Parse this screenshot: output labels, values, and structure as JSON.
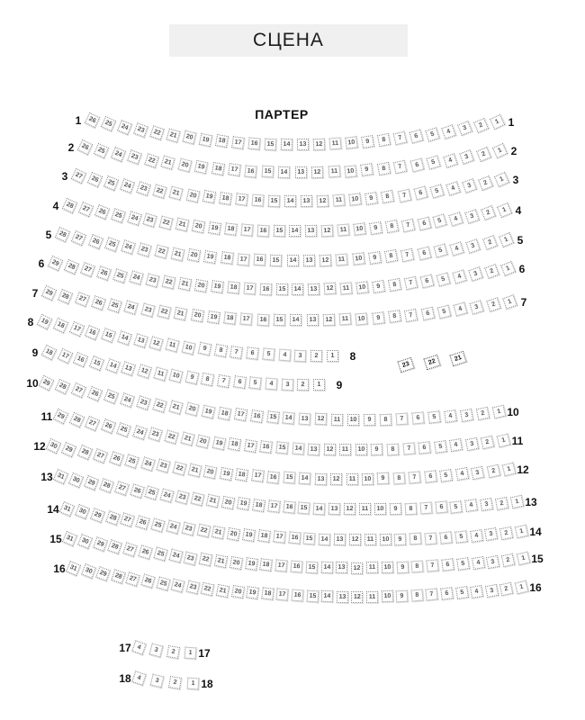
{
  "stage": {
    "label": "СЦЕНА"
  },
  "section": {
    "label": "ПАРТЕР"
  },
  "rows": [
    {
      "row": "1",
      "left_label": "1",
      "right_label": "1",
      "seat_start": 26,
      "seat_end": 1
    },
    {
      "row": "2",
      "left_label": "2",
      "right_label": "2",
      "seat_start": 26,
      "seat_end": 1
    },
    {
      "row": "3",
      "left_label": "3",
      "right_label": "3",
      "seat_start": 27,
      "seat_end": 1
    },
    {
      "row": "4",
      "left_label": "4",
      "right_label": "4",
      "seat_start": 28,
      "seat_end": 1
    },
    {
      "row": "5",
      "left_label": "5",
      "right_label": "5",
      "seat_start": 28,
      "seat_end": 1
    },
    {
      "row": "6",
      "left_label": "6",
      "right_label": "6",
      "seat_start": 29,
      "seat_end": 1
    },
    {
      "row": "7",
      "left_label": "7",
      "right_label": "7",
      "seat_start": 29,
      "seat_end": 1
    },
    {
      "row": "8",
      "left_label": "8",
      "right_label": "8",
      "seat_start": 19,
      "seat_end": 1
    },
    {
      "row": "9",
      "left_label": "9",
      "right_label": "9",
      "seat_start": 18,
      "seat_end": 1
    },
    {
      "row": "10",
      "left_label": "10",
      "right_label": "10",
      "seat_start": 29,
      "seat_end": 1
    },
    {
      "row": "11",
      "left_label": "11",
      "right_label": "11",
      "seat_start": 29,
      "seat_end": 1
    },
    {
      "row": "12",
      "left_label": "12",
      "right_label": "12",
      "seat_start": 30,
      "seat_end": 1
    },
    {
      "row": "13",
      "left_label": "13",
      "right_label": "13",
      "seat_start": 31,
      "seat_end": 1
    },
    {
      "row": "14",
      "left_label": "14",
      "right_label": "14",
      "seat_start": 31,
      "seat_end": 1
    },
    {
      "row": "15",
      "left_label": "15",
      "right_label": "15",
      "seat_start": 31,
      "seat_end": 1
    },
    {
      "row": "16",
      "left_label": "16",
      "right_label": "16",
      "seat_start": 31,
      "seat_end": 1
    },
    {
      "row": "17",
      "left_label": "17",
      "right_label": "17",
      "seat_start": 4,
      "seat_end": 1
    },
    {
      "row": "18",
      "left_label": "18",
      "right_label": "18",
      "seat_start": 4,
      "seat_end": 1
    }
  ],
  "side_block": {
    "seats": [
      "23",
      "22",
      "21"
    ]
  },
  "colors": {
    "background": "#ffffff",
    "stage_bg": "#f0f0f0",
    "seat_border": "#8a8a8a",
    "seat_text": "#555555",
    "label_text": "#111111"
  }
}
